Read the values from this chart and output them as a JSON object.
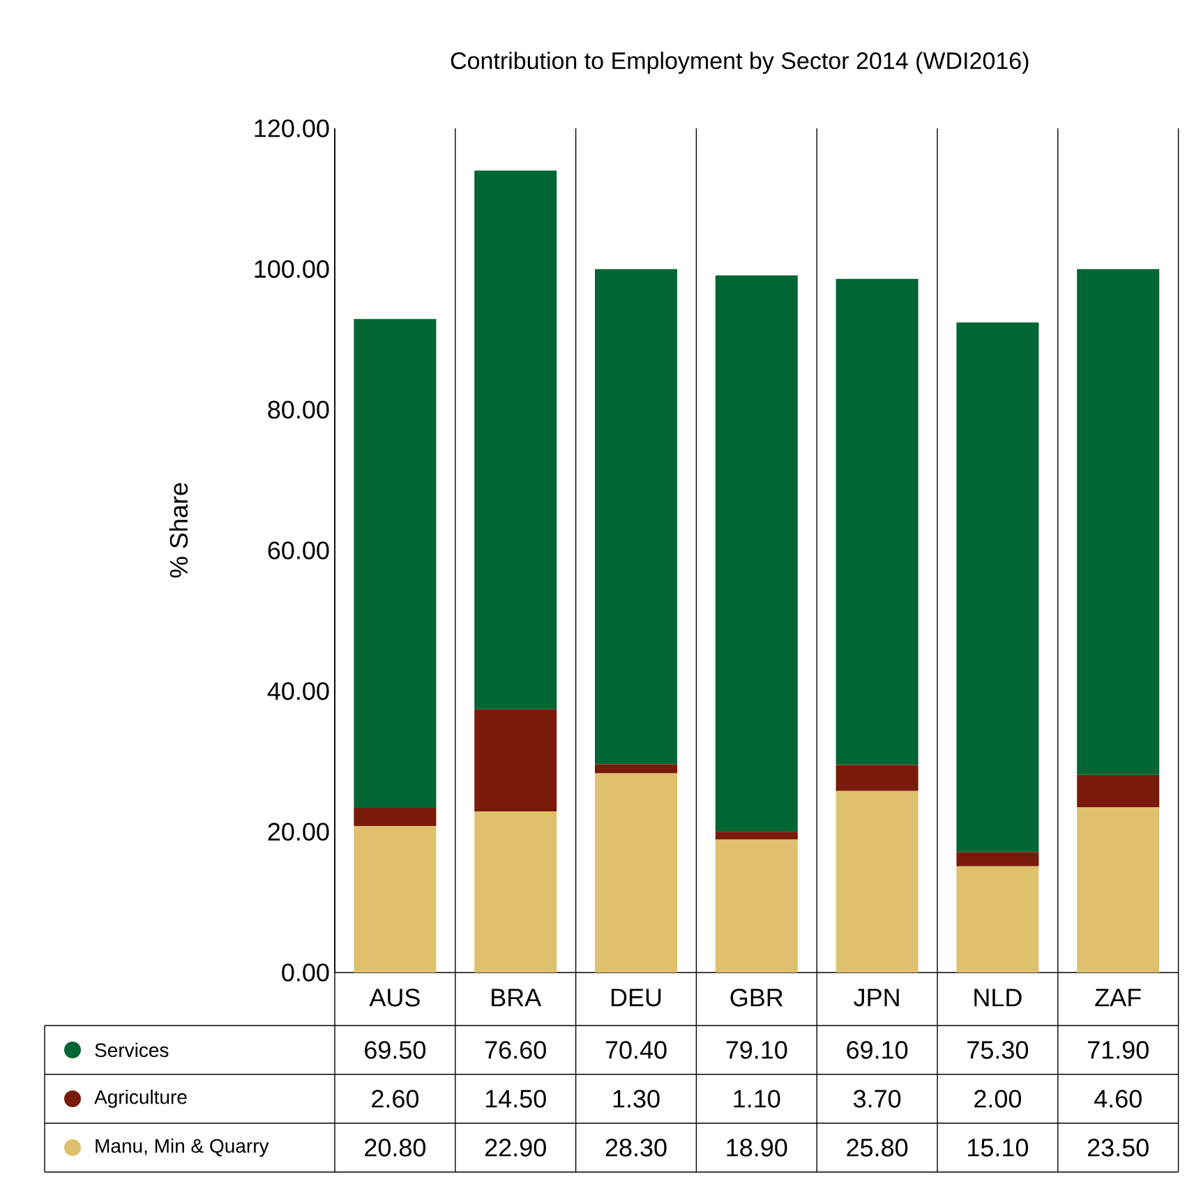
{
  "chart_data": {
    "type": "bar",
    "title": "Contribution to Employment by Sector 2014 (WDI2016)",
    "ylabel": "% Share",
    "categories": [
      "AUS",
      "BRA",
      "DEU",
      "GBR",
      "JPN",
      "NLD",
      "ZAF"
    ],
    "stacked": true,
    "series": [
      {
        "name": "Manu, Min & Quarry",
        "color": "#dfc06c",
        "values": [
          20.8,
          22.9,
          28.3,
          18.9,
          25.8,
          15.1,
          23.5
        ],
        "value_labels": [
          "20.80",
          "22.90",
          "28.30",
          "18.90",
          "25.80",
          "15.10",
          "23.50"
        ]
      },
      {
        "name": "Agriculture",
        "color": "#7a1a0a",
        "values": [
          2.6,
          14.5,
          1.3,
          1.1,
          3.7,
          2.0,
          4.6
        ],
        "value_labels": [
          "2.60",
          "14.50",
          "1.30",
          "1.10",
          "3.70",
          "2.00",
          "4.60"
        ]
      },
      {
        "name": "Services",
        "color": "#006633",
        "values": [
          69.5,
          76.6,
          70.4,
          79.1,
          69.1,
          75.3,
          71.9
        ],
        "value_labels": [
          "69.50",
          "76.60",
          "70.40",
          "79.10",
          "69.10",
          "75.30",
          "71.90"
        ]
      }
    ],
    "ylim": [
      0,
      120
    ],
    "yticks": [
      {
        "value": 0,
        "label": "0.00"
      },
      {
        "value": 20,
        "label": "20.00"
      },
      {
        "value": 40,
        "label": "40.00"
      },
      {
        "value": 60,
        "label": "60.00"
      },
      {
        "value": 80,
        "label": "80.00"
      },
      {
        "value": 100,
        "label": "100.00"
      },
      {
        "value": 120,
        "label": "120.00"
      }
    ],
    "grid": "x",
    "legend": "bottom"
  }
}
